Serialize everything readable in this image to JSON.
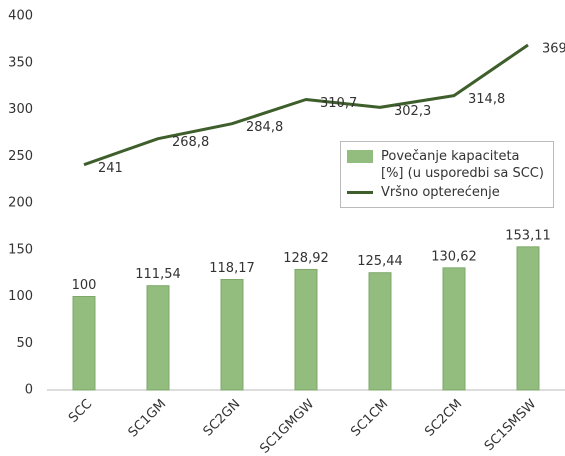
{
  "chart_data": {
    "type": "bar",
    "categories": [
      "SCC",
      "SC1GM",
      "SC2GN",
      "SC1GMGW",
      "SC1CM",
      "SC2CM",
      "SC1SMSW"
    ],
    "series": [
      {
        "name": "Povečanje kapaciteta [%] (u usporedbi sa SCC)",
        "type": "bar",
        "color": "#93bd7f",
        "values": [
          100,
          111.54,
          118.17,
          128.92,
          125.44,
          130.62,
          153.11
        ],
        "value_labels": [
          "100",
          "111,54",
          "118,17",
          "128,92",
          "125,44",
          "130,62",
          "153,11"
        ]
      },
      {
        "name": "Vršno opterećenje",
        "type": "line",
        "color": "#3e5f2b",
        "values": [
          241,
          268.8,
          284.8,
          310.7,
          302.3,
          314.8,
          369
        ],
        "value_labels": [
          "241",
          "268,8",
          "284,8",
          "310,7",
          "302,3",
          "314,8",
          "369"
        ]
      }
    ],
    "ylim": [
      0,
      400
    ],
    "yticks": [
      0,
      50,
      100,
      150,
      200,
      250,
      300,
      350,
      400
    ],
    "grid": false
  }
}
